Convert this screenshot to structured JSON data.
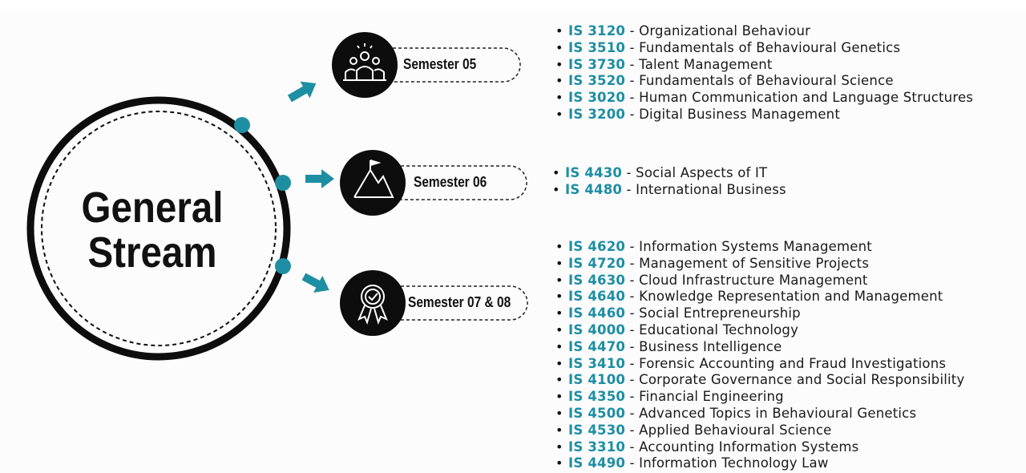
{
  "diagram": {
    "title_line1": "General",
    "title_line2": "Stream",
    "accent_color": "#1e8ea3",
    "semesters": [
      {
        "label": "Semester 05",
        "icon": "team-people-icon",
        "courses": [
          {
            "code": "IS 3120",
            "name": "Organizational Behaviour"
          },
          {
            "code": "IS 3510",
            "name": "Fundamentals of Behavioural Genetics"
          },
          {
            "code": "IS 3730",
            "name": "Talent Management"
          },
          {
            "code": "IS 3520",
            "name": "Fundamentals of Behavioural Science"
          },
          {
            "code": "IS 3020",
            "name": "Human Communication and Language Structures"
          },
          {
            "code": "IS 3200",
            "name": "Digital Business Management"
          }
        ]
      },
      {
        "label": "Semester 06",
        "icon": "mountain-flag-icon",
        "courses": [
          {
            "code": "IS 4430",
            "name": "Social Aspects of IT"
          },
          {
            "code": "IS 4480",
            "name": "International Business"
          }
        ]
      },
      {
        "label": "Semester 07 & 08",
        "icon": "award-badge-icon",
        "courses": [
          {
            "code": "IS 4620",
            "name": "Information Systems Management"
          },
          {
            "code": "IS 4720",
            "name": "Management of Sensitive Projects"
          },
          {
            "code": "IS 4630",
            "name": "Cloud Infrastructure Management"
          },
          {
            "code": "IS 4640",
            "name": "Knowledge Representation and Management"
          },
          {
            "code": "IS 4460",
            "name": "Social Entrepreneurship"
          },
          {
            "code": "IS 4000",
            "name": "Educational Technology"
          },
          {
            "code": "IS 4470",
            "name": "Business Intelligence"
          },
          {
            "code": "IS 3410",
            "name": "Forensic Accounting and Fraud Investigations"
          },
          {
            "code": "IS 4100",
            "name": "Corporate Governance and Social Responsibility"
          },
          {
            "code": "IS 4350",
            "name": "Financial Engineering"
          },
          {
            "code": "IS 4500",
            "name": "Advanced Topics in Behavioural Genetics"
          },
          {
            "code": "IS 4530",
            "name": "Applied Behavioural Science"
          },
          {
            "code": "IS 3310",
            "name": "Accounting Information Systems"
          },
          {
            "code": "IS 4490",
            "name": "Information Technology Law"
          }
        ]
      }
    ]
  }
}
